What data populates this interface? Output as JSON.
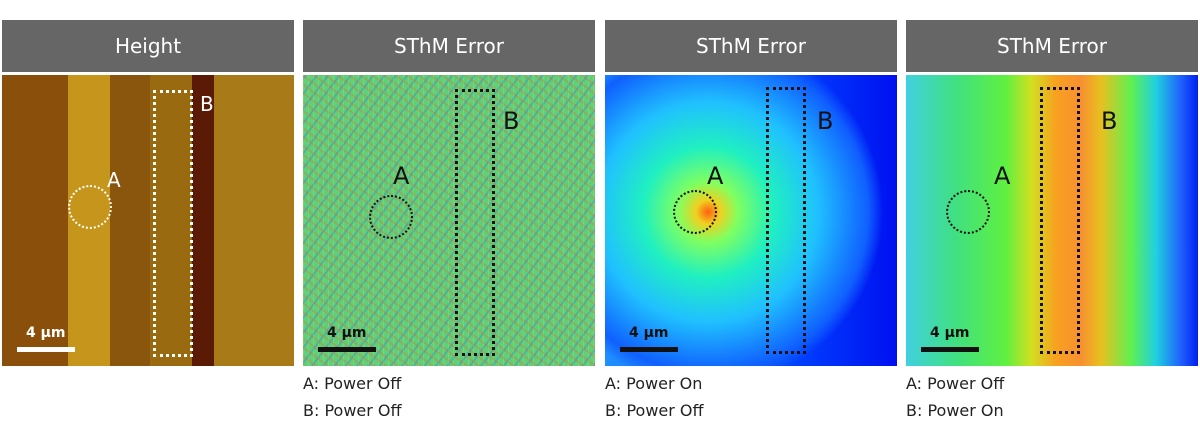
{
  "panels": [
    {
      "title": "Height",
      "scale": "4 µm",
      "label_a": "A",
      "label_b": "B",
      "captions": []
    },
    {
      "title": "SThM Error",
      "scale": "4 µm",
      "label_a": "A",
      "label_b": "B",
      "captions": [
        "A: Power Off",
        "B: Power Off"
      ]
    },
    {
      "title": "SThM Error",
      "scale": "4 µm",
      "label_a": "A",
      "label_b": "B",
      "captions": [
        "A: Power On",
        "B: Power Off"
      ]
    },
    {
      "title": "SThM Error",
      "scale": "4 µm",
      "label_a": "A",
      "label_b": "B",
      "captions": [
        "A: Power Off",
        "B: Power On"
      ]
    }
  ],
  "colors": {
    "header": "#666666",
    "overlay_light": "#ffffff",
    "overlay_dark": "#111111"
  }
}
